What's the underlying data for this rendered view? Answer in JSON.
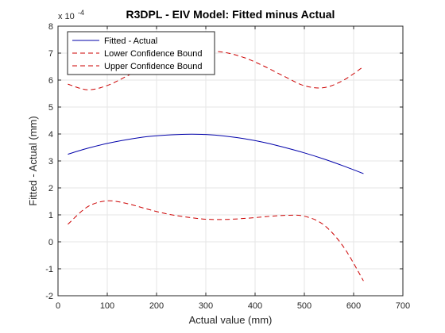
{
  "chart_data": {
    "type": "line",
    "title": "R3DPL - EIV Model: Fitted minus Actual",
    "xlabel": "Actual value (mm)",
    "ylabel": "Fitted - Actual (mm)",
    "y_exponent_label": "x 10",
    "y_exponent_power": "-4",
    "xlim": [
      0,
      700
    ],
    "ylim": [
      -2,
      8
    ],
    "xticks": [
      0,
      100,
      200,
      300,
      400,
      500,
      600,
      700
    ],
    "yticks": [
      -2,
      -1,
      0,
      1,
      2,
      3,
      4,
      5,
      6,
      7,
      8
    ],
    "grid": true,
    "legend_location": "top-left",
    "x": [
      20,
      60,
      100,
      140,
      180,
      220,
      260,
      300,
      340,
      380,
      420,
      460,
      500,
      540,
      580,
      620
    ],
    "series": [
      {
        "name": "Fitted - Actual",
        "color": "#0000aa",
        "style": "solid",
        "values": [
          3.25,
          3.47,
          3.65,
          3.79,
          3.9,
          3.96,
          3.99,
          3.98,
          3.92,
          3.82,
          3.68,
          3.5,
          3.3,
          3.07,
          2.81,
          2.53
        ]
      },
      {
        "name": "Lower Confidence Bound",
        "color": "#cc0000",
        "style": "dashed",
        "values": [
          0.65,
          1.3,
          1.52,
          1.42,
          1.22,
          1.04,
          0.92,
          0.84,
          0.83,
          0.87,
          0.93,
          0.98,
          0.95,
          0.62,
          -0.2,
          -1.45
        ]
      },
      {
        "name": "Upper Confidence Bound",
        "color": "#cc0000",
        "style": "dashed",
        "values": [
          5.85,
          5.64,
          5.8,
          6.15,
          6.53,
          6.86,
          7.04,
          7.08,
          7.02,
          6.82,
          6.5,
          6.13,
          5.79,
          5.72,
          6.0,
          6.5
        ]
      }
    ]
  }
}
